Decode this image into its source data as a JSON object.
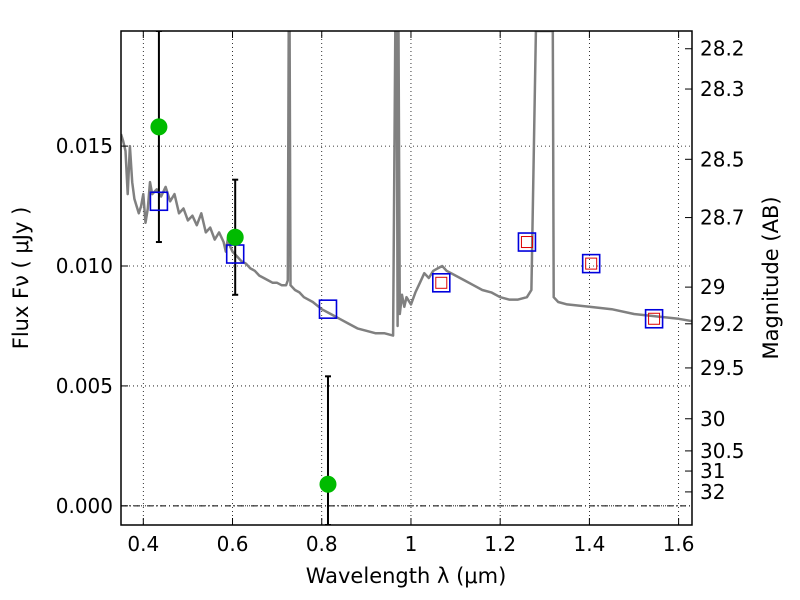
{
  "chart_data": {
    "type": "scatter",
    "title": "",
    "xlabel": "Wavelength  λ (μm)",
    "ylabel": "Flux  Fν  ( μJy )",
    "ylabel_right": "Magnitude (AB)",
    "xlim": [
      0.35,
      1.63
    ],
    "ylim": [
      -0.0008,
      0.0198
    ],
    "grid": true,
    "x_ticks": [
      0.4,
      0.6,
      0.8,
      1.0,
      1.2,
      1.4,
      1.6
    ],
    "x_tick_labels": [
      "0.4",
      "0.6",
      "0.8",
      "1",
      "1.2",
      "1.4",
      "1.6"
    ],
    "y_ticks": [
      0.0,
      0.005,
      0.01,
      0.015
    ],
    "y_tick_labels": [
      "0.000",
      "0.005",
      "0.010",
      "0.015"
    ],
    "magnitude_ticks": [
      {
        "label": "28.2",
        "flux": 0.01906
      },
      {
        "label": "28.3",
        "flux": 0.01738
      },
      {
        "label": "28.5",
        "flux": 0.01445
      },
      {
        "label": "28.7",
        "flux": 0.01202
      },
      {
        "label": "29",
        "flux": 0.00912
      },
      {
        "label": "29.2",
        "flux": 0.00759
      },
      {
        "label": "29.5",
        "flux": 0.00575
      },
      {
        "label": "30",
        "flux": 0.00363
      },
      {
        "label": "30.5",
        "flux": 0.00229
      },
      {
        "label": "31",
        "flux": 0.00145
      },
      {
        "label": "32",
        "flux": 0.00058
      }
    ],
    "colors": {
      "model": "#808080",
      "observed": "#00bb00",
      "synthetic_box": "#0000dd",
      "synthetic_inner": "#dd0000",
      "errorbar": "#000000"
    },
    "model_spectrum": {
      "x": [
        0.35,
        0.355,
        0.36,
        0.365,
        0.37,
        0.375,
        0.38,
        0.385,
        0.39,
        0.395,
        0.4,
        0.405,
        0.41,
        0.415,
        0.42,
        0.43,
        0.44,
        0.45,
        0.46,
        0.47,
        0.48,
        0.49,
        0.5,
        0.51,
        0.52,
        0.53,
        0.54,
        0.55,
        0.56,
        0.57,
        0.58,
        0.585,
        0.59,
        0.595,
        0.6,
        0.61,
        0.62,
        0.63,
        0.64,
        0.65,
        0.66,
        0.67,
        0.68,
        0.69,
        0.7,
        0.71,
        0.72,
        0.724,
        0.726,
        0.728,
        0.73,
        0.74,
        0.75,
        0.76,
        0.78,
        0.8,
        0.82,
        0.84,
        0.86,
        0.88,
        0.9,
        0.92,
        0.94,
        0.96,
        0.965,
        0.968,
        0.97,
        0.972,
        0.975,
        0.98,
        0.985,
        0.99,
        1.0,
        1.01,
        1.02,
        1.03,
        1.04,
        1.05,
        1.06,
        1.07,
        1.08,
        1.1,
        1.12,
        1.14,
        1.16,
        1.18,
        1.2,
        1.22,
        1.24,
        1.26,
        1.27,
        1.28,
        1.285,
        1.29,
        1.3,
        1.31,
        1.315,
        1.318,
        1.32,
        1.33,
        1.35,
        1.4,
        1.45,
        1.5,
        1.55,
        1.6,
        1.63
      ],
      "y": [
        0.0155,
        0.0152,
        0.0148,
        0.013,
        0.015,
        0.0135,
        0.0128,
        0.0125,
        0.0122,
        0.0125,
        0.013,
        0.0118,
        0.0124,
        0.0135,
        0.013,
        0.0132,
        0.0129,
        0.0133,
        0.0127,
        0.013,
        0.0122,
        0.0124,
        0.0119,
        0.0121,
        0.0117,
        0.0122,
        0.0114,
        0.0116,
        0.0111,
        0.0114,
        0.011,
        0.0106,
        0.0112,
        0.0108,
        0.0106,
        0.0104,
        0.0102,
        0.0101,
        0.0099,
        0.0098,
        0.0096,
        0.0095,
        0.0094,
        0.0093,
        0.0093,
        0.0092,
        0.0092,
        0.0094,
        0.0198,
        0.0198,
        0.0092,
        0.009,
        0.0089,
        0.0087,
        0.0085,
        0.0082,
        0.008,
        0.0078,
        0.0076,
        0.0074,
        0.0073,
        0.0072,
        0.0072,
        0.0071,
        0.0198,
        0.0198,
        0.0075,
        0.0198,
        0.008,
        0.0088,
        0.0083,
        0.0087,
        0.0084,
        0.0089,
        0.0093,
        0.0097,
        0.0095,
        0.0098,
        0.0099,
        0.01,
        0.0098,
        0.0096,
        0.0094,
        0.0092,
        0.009,
        0.0089,
        0.0087,
        0.0086,
        0.0086,
        0.0087,
        0.009,
        0.0198,
        0.0198,
        0.0198,
        0.0198,
        0.0198,
        0.0198,
        0.0198,
        0.0087,
        0.0085,
        0.0084,
        0.0083,
        0.0082,
        0.008,
        0.0079,
        0.0078,
        0.0077
      ]
    },
    "observed_points": [
      {
        "x": 0.435,
        "y": 0.0158,
        "err_low": 0.011,
        "err_high": 0.0198
      },
      {
        "x": 0.606,
        "y": 0.0112,
        "err_low": 0.0088,
        "err_high": 0.0136
      },
      {
        "x": 0.814,
        "y": 0.0009,
        "err_low": -0.0008,
        "err_high": 0.0054
      }
    ],
    "synthetic_points": [
      {
        "x": 0.435,
        "y": 0.0127,
        "inner": false
      },
      {
        "x": 0.606,
        "y": 0.0105,
        "inner": false
      },
      {
        "x": 0.814,
        "y": 0.0082,
        "inner": false
      },
      {
        "x": 1.068,
        "y": 0.0093,
        "inner": true
      },
      {
        "x": 1.26,
        "y": 0.011,
        "inner": true
      },
      {
        "x": 1.404,
        "y": 0.0101,
        "inner": true
      },
      {
        "x": 1.545,
        "y": 0.0078,
        "inner": true
      }
    ]
  }
}
